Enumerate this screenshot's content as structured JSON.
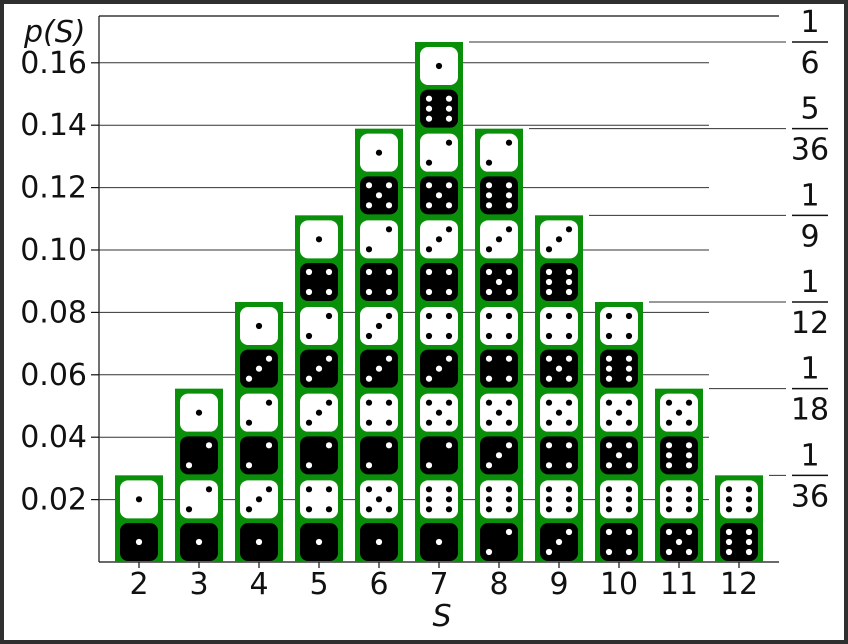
{
  "chart_data": {
    "type": "bar",
    "xlabel": "S",
    "ylabel": "p(S)",
    "categories": [
      "2",
      "3",
      "4",
      "5",
      "6",
      "7",
      "8",
      "9",
      "10",
      "11",
      "12"
    ],
    "values": [
      0.02778,
      0.05556,
      0.08333,
      0.11111,
      0.13889,
      0.16667,
      0.13889,
      0.11111,
      0.08333,
      0.05556,
      0.02778
    ],
    "ylim": [
      0,
      0.175
    ],
    "yticks": [
      0.02,
      0.04,
      0.06,
      0.08,
      0.1,
      0.12,
      0.14,
      0.16
    ],
    "ytick_labels": [
      "0.02",
      "0.04",
      "0.06",
      "0.08",
      "0.10",
      "0.12",
      "0.14",
      "0.16"
    ],
    "right_axis_fractions": [
      {
        "value": 0.16667,
        "numerator": "1",
        "denominator": "6"
      },
      {
        "value": 0.13889,
        "numerator": "5",
        "denominator": "36"
      },
      {
        "value": 0.11111,
        "numerator": "1",
        "denominator": "9"
      },
      {
        "value": 0.08333,
        "numerator": "1",
        "denominator": "12"
      },
      {
        "value": 0.05556,
        "numerator": "1",
        "denominator": "18"
      },
      {
        "value": 0.02778,
        "numerator": "1",
        "denominator": "36"
      }
    ],
    "dice_pairs": [
      [
        [
          1,
          1
        ]
      ],
      [
        [
          2,
          1
        ],
        [
          1,
          2
        ]
      ],
      [
        [
          3,
          1
        ],
        [
          2,
          2
        ],
        [
          1,
          3
        ]
      ],
      [
        [
          4,
          1
        ],
        [
          3,
          2
        ],
        [
          2,
          3
        ],
        [
          1,
          4
        ]
      ],
      [
        [
          5,
          1
        ],
        [
          4,
          2
        ],
        [
          3,
          3
        ],
        [
          2,
          4
        ],
        [
          1,
          5
        ]
      ],
      [
        [
          6,
          1
        ],
        [
          5,
          2
        ],
        [
          4,
          3
        ],
        [
          3,
          4
        ],
        [
          2,
          5
        ],
        [
          1,
          6
        ]
      ],
      [
        [
          6,
          2
        ],
        [
          5,
          3
        ],
        [
          4,
          4
        ],
        [
          3,
          5
        ],
        [
          2,
          6
        ]
      ],
      [
        [
          6,
          3
        ],
        [
          5,
          4
        ],
        [
          4,
          5
        ],
        [
          3,
          6
        ]
      ],
      [
        [
          6,
          4
        ],
        [
          5,
          5
        ],
        [
          4,
          6
        ]
      ],
      [
        [
          6,
          5
        ],
        [
          5,
          6
        ]
      ],
      [
        [
          6,
          6
        ]
      ]
    ],
    "colors": {
      "bar": "#0a8f0a",
      "die_white": "#ffffff",
      "die_black": "#000000",
      "axis": "#111111"
    }
  }
}
